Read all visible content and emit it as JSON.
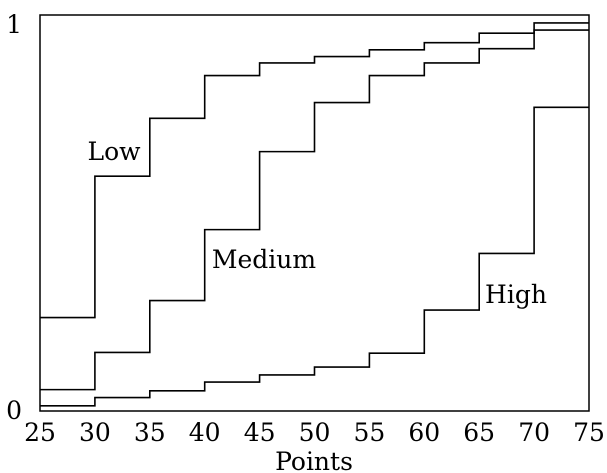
{
  "chart_data": {
    "type": "line",
    "step": true,
    "title": "",
    "xlabel": "Points",
    "ylabel": "",
    "xlim": [
      25,
      75
    ],
    "ylim": [
      0,
      1
    ],
    "x_ticks": [
      "25",
      "30",
      "35",
      "40",
      "45",
      "50",
      "55",
      "60",
      "65",
      "70",
      "75"
    ],
    "y_ticks": [
      "0",
      "1"
    ],
    "grid": false,
    "legend": "none",
    "x": [
      25,
      30,
      35,
      40,
      45,
      50,
      55,
      60,
      65,
      70,
      75
    ],
    "series": [
      {
        "name": "Low",
        "color": "#000000",
        "values": [
          0.236,
          0.593,
          0.739,
          0.847,
          0.879,
          0.895,
          0.912,
          0.93,
          0.954,
          0.98,
          0.98
        ]
      },
      {
        "name": "Medium",
        "color": "#000000",
        "values": [
          0.054,
          0.148,
          0.279,
          0.458,
          0.655,
          0.779,
          0.847,
          0.879,
          0.915,
          0.962,
          0.962
        ]
      },
      {
        "name": "High",
        "color": "#000000",
        "values": [
          0.013,
          0.034,
          0.051,
          0.073,
          0.091,
          0.111,
          0.146,
          0.255,
          0.398,
          0.767,
          0.767
        ]
      }
    ]
  }
}
